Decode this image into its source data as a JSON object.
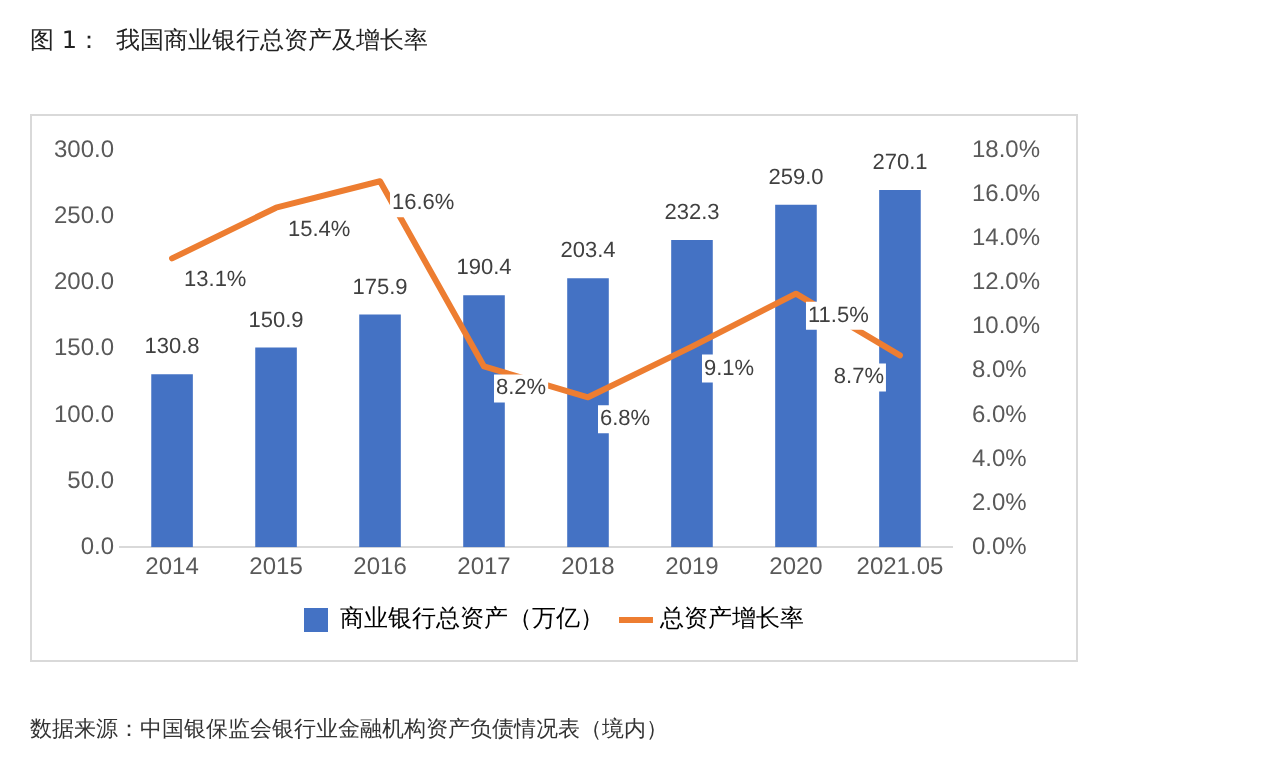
{
  "chart_data": {
    "type": "bar",
    "title": "图 1：  我国商业银行总资产及增长率",
    "categories": [
      "2014",
      "2015",
      "2016",
      "2017",
      "2018",
      "2019",
      "2020",
      "2021.05"
    ],
    "series": [
      {
        "name": "商业银行总资产（万亿）",
        "color": "#4472c4",
        "values": [
          130.8,
          150.9,
          175.9,
          190.4,
          203.4,
          232.3,
          259.0,
          270.1
        ],
        "value_labels": [
          "130.8",
          "150.9",
          "175.9",
          "190.4",
          "203.4",
          "232.3",
          "259.0",
          "270.1"
        ]
      },
      {
        "name": "总资产增长率",
        "type": "line",
        "axis": "y2",
        "color": "#ed7d31",
        "values": [
          13.1,
          15.4,
          16.6,
          8.2,
          6.8,
          9.1,
          11.5,
          8.7
        ],
        "value_labels": [
          "13.1%",
          "15.4%",
          "16.6%",
          "8.2%",
          "6.8%",
          "9.1%",
          "11.5%",
          "8.7%"
        ]
      }
    ],
    "ylim": [
      0,
      300
    ],
    "yticks": [
      {
        "value": 0,
        "label": "0.0"
      },
      {
        "value": 50,
        "label": "50.0"
      },
      {
        "value": 100,
        "label": "100.0"
      },
      {
        "value": 150,
        "label": "150.0"
      },
      {
        "value": 200,
        "label": "200.0"
      },
      {
        "value": 250,
        "label": "250.0"
      },
      {
        "value": 300,
        "label": "300.0"
      }
    ],
    "y2lim": [
      0,
      18
    ],
    "y2ticks": [
      {
        "value": 0,
        "label": "0.0%"
      },
      {
        "value": 2,
        "label": "2.0%"
      },
      {
        "value": 4,
        "label": "4.0%"
      },
      {
        "value": 6,
        "label": "6.0%"
      },
      {
        "value": 8,
        "label": "8.0%"
      },
      {
        "value": 10,
        "label": "10.0%"
      },
      {
        "value": 12,
        "label": "12.0%"
      },
      {
        "value": 14,
        "label": "14.0%"
      },
      {
        "value": 16,
        "label": "16.0%"
      },
      {
        "value": 18,
        "label": "18.0%"
      }
    ],
    "grid": false,
    "legend": "bottom",
    "marker": "none",
    "line_style": "solid",
    "annotations": [
      "数据来源：中国银保监会银行业金融机构资产负债情况表（境内）"
    ]
  }
}
